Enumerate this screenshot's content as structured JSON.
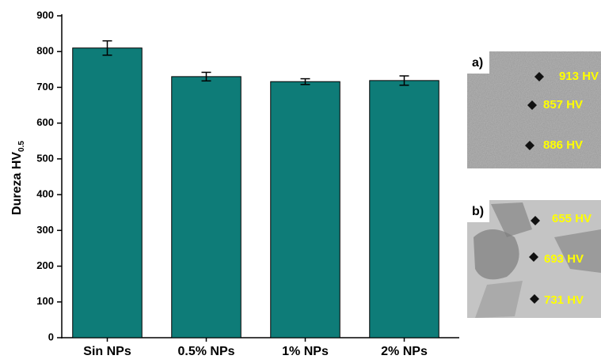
{
  "chart_data": {
    "type": "bar",
    "y_label": "Dureza HV",
    "y_label_subscript": "0.5",
    "categories": [
      "Sin NPs",
      "0.5% NPs",
      "1% NPs",
      "2% NPs"
    ],
    "values": [
      810,
      730,
      716,
      719
    ],
    "errors": [
      20,
      12,
      8,
      13
    ],
    "color": "#0e7c78",
    "ylim": [
      0,
      900
    ],
    "yticks": [
      0,
      100,
      200,
      300,
      400,
      500,
      600,
      700,
      800,
      900
    ],
    "grid": false
  },
  "insets": [
    {
      "label": "a)",
      "annotations": [
        "913 HV",
        "857 HV",
        "886 HV"
      ]
    },
    {
      "label": "b)",
      "annotations": [
        "655 HV",
        "693 HV",
        "731 HV"
      ]
    }
  ]
}
